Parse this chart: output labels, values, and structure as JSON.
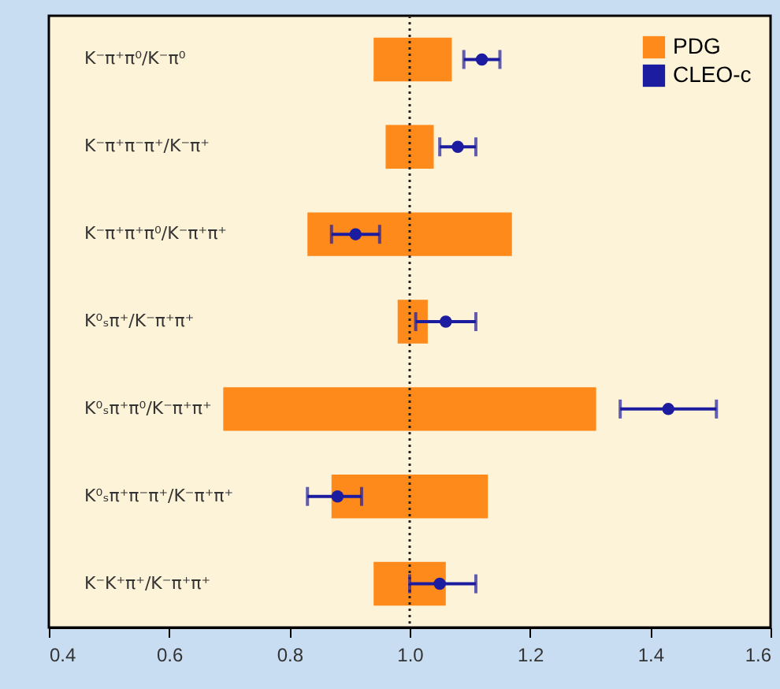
{
  "chart_data": {
    "type": "bar",
    "orientation": "horizontal",
    "categories": [
      "K⁻π⁺π⁰/K⁻π⁰",
      "K⁻π⁺π⁻π⁺/K⁻π⁺",
      "K⁻π⁺π⁺π⁰/K⁻π⁺π⁺",
      "K⁰ₛπ⁺/K⁻π⁺π⁺",
      "K⁰ₛπ⁺π⁰/K⁻π⁺π⁺",
      "K⁰ₛπ⁺π⁻π⁺/K⁻π⁺π⁺",
      "K⁻K⁺π⁺/K⁻π⁺π⁺"
    ],
    "series": [
      {
        "name": "PDG",
        "color": "#ff8a1c",
        "base": [
          0.94,
          0.96,
          0.83,
          0.98,
          0.69,
          0.87,
          0.94
        ],
        "values": [
          0.13,
          0.08,
          0.34,
          0.05,
          0.62,
          0.26,
          0.12
        ]
      },
      {
        "name": "CLEO-c",
        "type": "scatter",
        "color": "#1c1ca0",
        "values": [
          1.12,
          1.08,
          0.91,
          1.06,
          1.43,
          0.88,
          1.05
        ],
        "errors": [
          [
            1.09,
            1.15
          ],
          [
            1.05,
            1.11
          ],
          [
            0.87,
            0.95
          ],
          [
            1.01,
            1.11
          ],
          [
            1.35,
            1.51
          ],
          [
            0.83,
            0.92
          ],
          [
            1.0,
            1.11
          ]
        ]
      }
    ],
    "xlim": [
      0.4,
      1.6
    ],
    "xticks": [
      0.4,
      0.6,
      0.8,
      {
        "value": 1,
        "label": "1.0"
      },
      1.2,
      1.4,
      1.6
    ],
    "ref_lines": [
      {
        "axis": "x",
        "value": 1,
        "color": "#222222",
        "line_style": "dotted"
      }
    ],
    "marker": "circle",
    "legend": "top right",
    "grid": false
  }
}
